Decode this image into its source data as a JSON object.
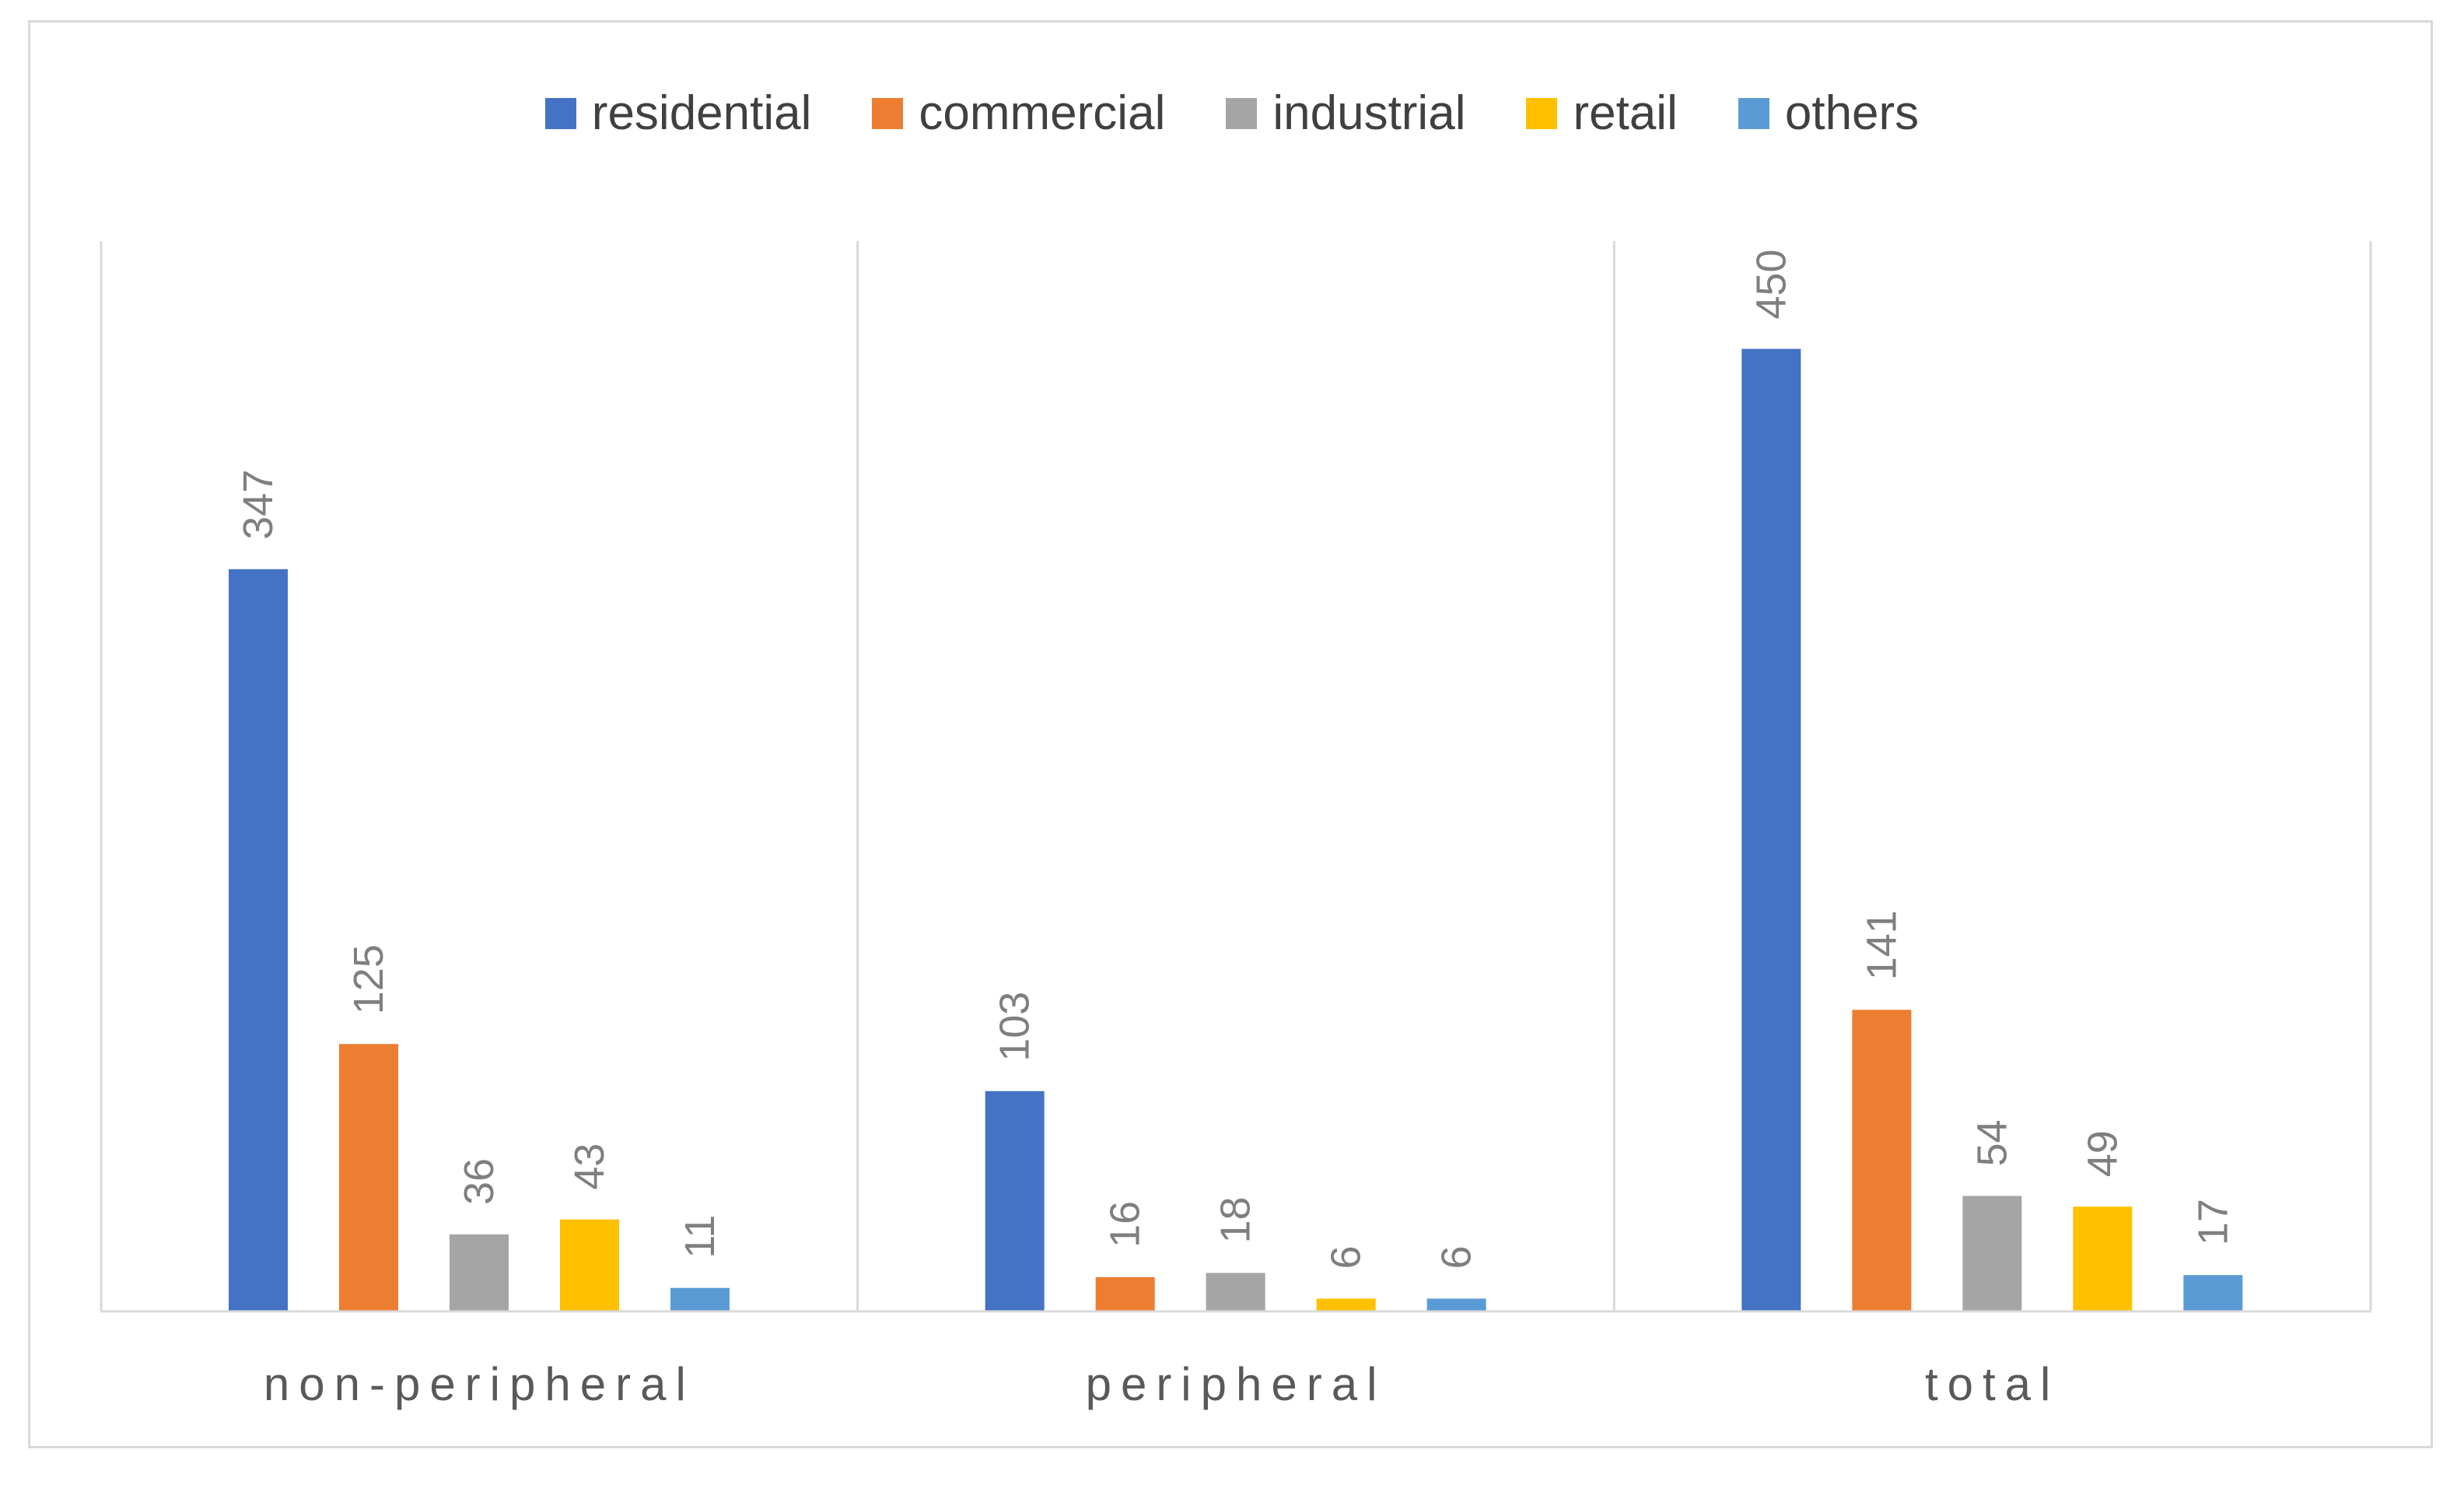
{
  "chart_data": {
    "type": "bar",
    "categories": [
      "non-peripheral",
      "peripheral",
      "total"
    ],
    "series": [
      {
        "name": "residential",
        "values": [
          347,
          103,
          450
        ],
        "color": "#4472C4"
      },
      {
        "name": "commercial",
        "values": [
          125,
          16,
          141
        ],
        "color": "#ED7D31"
      },
      {
        "name": "industrial",
        "values": [
          36,
          18,
          54
        ],
        "color": "#A5A5A5"
      },
      {
        "name": "retail",
        "values": [
          43,
          6,
          49
        ],
        "color": "#FFC000"
      },
      {
        "name": "others",
        "values": [
          11,
          6,
          17
        ],
        "color": "#5B9BD5"
      }
    ],
    "title": "",
    "xlabel": "",
    "ylabel": "",
    "ylim": [
      0,
      500
    ],
    "legend_position": "top",
    "grid": false,
    "data_labels": true
  }
}
